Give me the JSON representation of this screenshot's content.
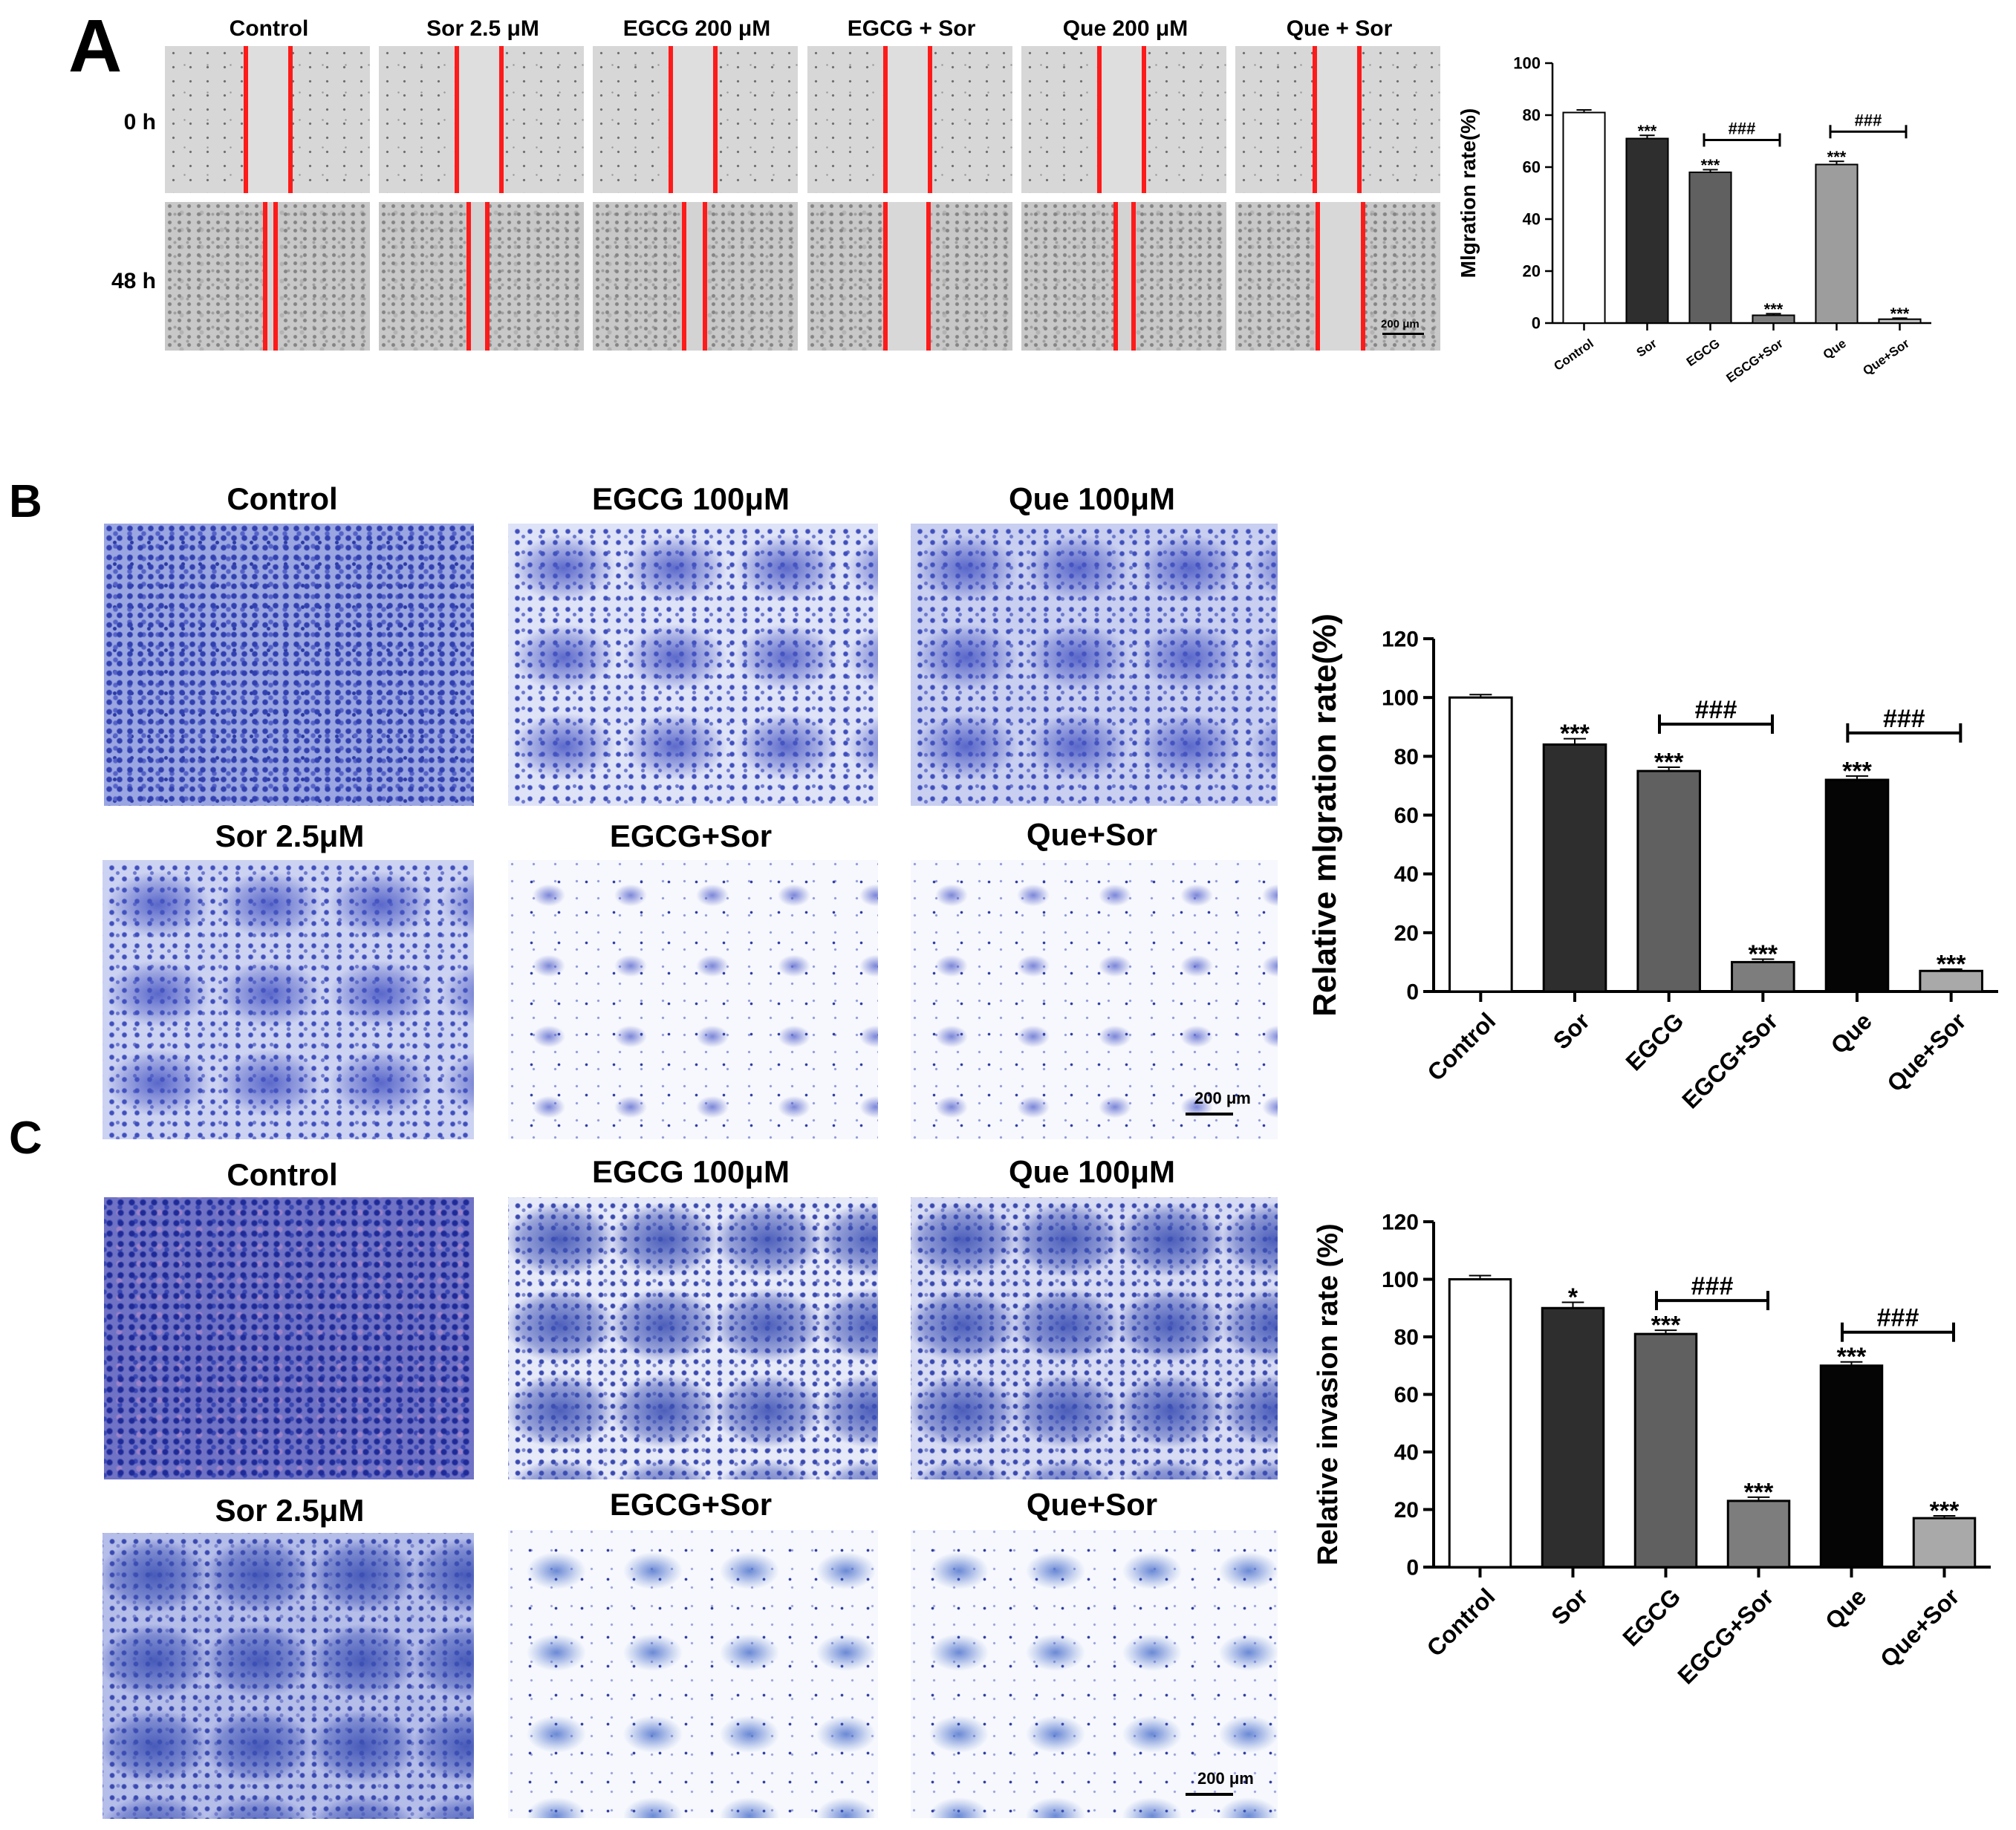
{
  "panel_labels": {
    "a": "A",
    "b": "B",
    "c": "C"
  },
  "panel_a": {
    "columns": [
      "Control",
      "Sor 2.5 μM",
      "EGCG 200 μM",
      "EGCG + Sor",
      "Que 200 μM",
      "Que + Sor"
    ],
    "rows": [
      "0 h",
      "48 h"
    ],
    "scale": "200 μm"
  },
  "panel_b": {
    "titles": [
      "Control",
      "EGCG 100μM",
      "Que 100μM",
      "Sor 2.5μM",
      "EGCG+Sor",
      "Que+Sor"
    ],
    "scale": "200 μm"
  },
  "panel_c": {
    "titles": [
      "Control",
      "EGCG 100μM",
      "Que 100μM",
      "Sor 2.5μM",
      "EGCG+Sor",
      "Que+Sor"
    ],
    "scale": "200 μm"
  },
  "colors": {
    "red_line": "#ff1a1a",
    "bar_control": "#ffffff",
    "bar_sor": "#2e2e2e",
    "bar_egcg": "#606060",
    "bar_egcg_sor": "#7d7d7d",
    "bar_que_a": "#9d9d9d",
    "bar_que_bc": "#050505",
    "bar_que_sor": "#a9a9a9"
  },
  "chart_data": [
    {
      "type": "bar",
      "title": "",
      "xlabel": "",
      "ylabel": "Mlgration rate(%)",
      "categories": [
        "Control",
        "Sor",
        "EGCG",
        "EGCG+Sor",
        "Que",
        "Que+Sor"
      ],
      "values": [
        81,
        71,
        58,
        3,
        61,
        1.5
      ],
      "errors": [
        1,
        1.2,
        1,
        0.6,
        1.2,
        0.4
      ],
      "ylim": [
        0,
        100
      ],
      "yticks": [
        0,
        20,
        40,
        60,
        80,
        100
      ],
      "significance": [
        "",
        "***",
        "***",
        "***",
        "***",
        "***"
      ],
      "brackets": [
        {
          "from": 2,
          "to": 3,
          "label": "###"
        },
        {
          "from": 4,
          "to": 5,
          "label": "###"
        }
      ],
      "bar_colors": [
        "#ffffff",
        "#2e2e2e",
        "#606060",
        "#7d7d7d",
        "#9d9d9d",
        "#bdbdbd"
      ]
    },
    {
      "type": "bar",
      "title": "",
      "xlabel": "",
      "ylabel": "Relative mlgration rate(%)",
      "categories": [
        "Control",
        "Sor",
        "EGCG",
        "EGCG+Sor",
        "Que",
        "Que+Sor"
      ],
      "values": [
        100,
        84,
        75,
        10,
        72,
        7
      ],
      "errors": [
        1,
        2,
        1.3,
        1,
        1.3,
        0.6
      ],
      "ylim": [
        0,
        120
      ],
      "yticks": [
        0,
        20,
        40,
        60,
        80,
        100,
        120
      ],
      "significance": [
        "",
        "***",
        "***",
        "***",
        "***",
        "***"
      ],
      "brackets": [
        {
          "from": 2,
          "to": 3,
          "label": "###"
        },
        {
          "from": 4,
          "to": 5,
          "label": "###"
        }
      ],
      "bar_colors": [
        "#ffffff",
        "#2e2e2e",
        "#606060",
        "#7d7d7d",
        "#050505",
        "#a9a9a9"
      ]
    },
    {
      "type": "bar",
      "title": "",
      "xlabel": "",
      "ylabel": "Relative invasion rate (%)",
      "categories": [
        "Control",
        "Sor",
        "EGCG",
        "EGCG+Sor",
        "Que",
        "Que+Sor"
      ],
      "values": [
        100,
        90,
        81,
        23,
        70,
        17
      ],
      "errors": [
        1.3,
        2,
        1.3,
        1.3,
        1.3,
        0.8
      ],
      "ylim": [
        0,
        120
      ],
      "yticks": [
        0,
        20,
        40,
        60,
        80,
        100,
        120
      ],
      "significance": [
        "",
        "*",
        "***",
        "***",
        "***",
        "***"
      ],
      "brackets": [
        {
          "from": 2,
          "to": 3,
          "label": "###"
        },
        {
          "from": 4,
          "to": 5,
          "label": "###"
        }
      ],
      "bar_colors": [
        "#ffffff",
        "#2e2e2e",
        "#606060",
        "#7d7d7d",
        "#050505",
        "#a9a9a9"
      ]
    }
  ]
}
